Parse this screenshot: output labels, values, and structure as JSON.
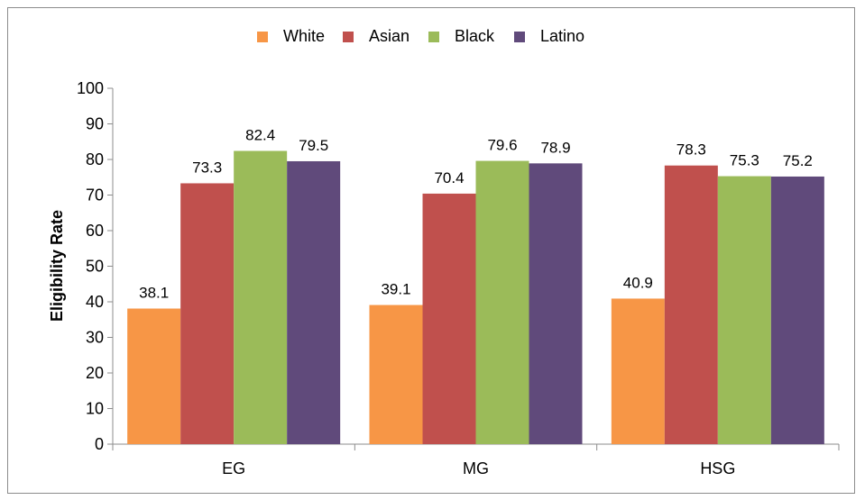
{
  "chart_data": {
    "type": "bar",
    "title": "",
    "xlabel": "",
    "ylabel": "Eligibility Rate",
    "ylim": [
      0,
      100
    ],
    "yticks": [
      0,
      10,
      20,
      30,
      40,
      50,
      60,
      70,
      80,
      90,
      100
    ],
    "categories": [
      "EG",
      "MG",
      "HSG"
    ],
    "legend_position": "top-center",
    "grid": false,
    "series": [
      {
        "name": "White",
        "color": "#f79646",
        "values": [
          38.1,
          39.1,
          40.9
        ]
      },
      {
        "name": "Asian",
        "color": "#c0504d",
        "values": [
          73.3,
          70.4,
          78.3
        ]
      },
      {
        "name": "Black",
        "color": "#9bbb59",
        "values": [
          82.4,
          79.6,
          75.3
        ]
      },
      {
        "name": "Latino",
        "color": "#604a7b",
        "values": [
          79.5,
          78.9,
          75.2
        ]
      }
    ],
    "data_labels": [
      [
        "38.1",
        "39.1",
        "40.9"
      ],
      [
        "73.3",
        "70.4",
        "78.3"
      ],
      [
        "82.4",
        "79.6",
        "75.3"
      ],
      [
        "79.5",
        "78.9",
        "75.2"
      ]
    ]
  }
}
